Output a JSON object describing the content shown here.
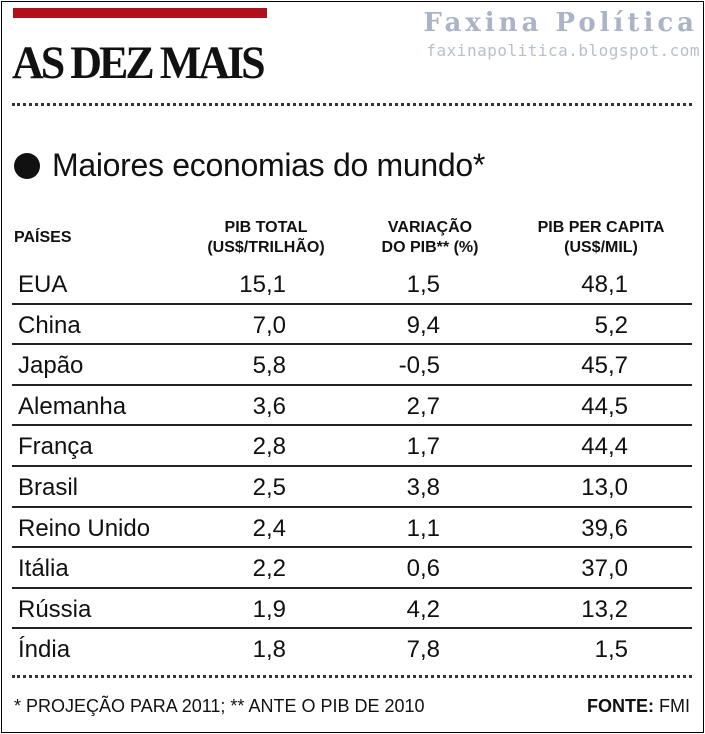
{
  "header": {
    "title": "AS DEZ MAIS",
    "watermark_title": "Faxina Política",
    "watermark_url": "faxinapolitica.blogspot.com",
    "accent_color": "#b01019"
  },
  "chart_data": {
    "type": "table",
    "title": "Maiores economias do mundo*",
    "columns": {
      "country": "PAÍSES",
      "gdp_line1": "PIB TOTAL",
      "gdp_line2": "(US$/TRILHÃO)",
      "growth_line1": "VARIAÇÃO",
      "growth_line2": "DO PIB** (%)",
      "percap_line1": "PIB PER CAPITA",
      "percap_line2": "(US$/MIL)"
    },
    "rows": [
      {
        "country": "EUA",
        "gdp": "15,1",
        "growth": "1,5",
        "per_capita": "48,1"
      },
      {
        "country": "China",
        "gdp": "7,0",
        "growth": "9,4",
        "per_capita": "5,2"
      },
      {
        "country": "Japão",
        "gdp": "5,8",
        "growth": "-0,5",
        "per_capita": "45,7"
      },
      {
        "country": "Alemanha",
        "gdp": "3,6",
        "growth": "2,7",
        "per_capita": "44,5"
      },
      {
        "country": "França",
        "gdp": "2,8",
        "growth": "1,7",
        "per_capita": "44,4"
      },
      {
        "country": "Brasil",
        "gdp": "2,5",
        "growth": "3,8",
        "per_capita": "13,0"
      },
      {
        "country": "Reino Unido",
        "gdp": "2,4",
        "growth": "1,1",
        "per_capita": "39,6"
      },
      {
        "country": "Itália",
        "gdp": "2,2",
        "growth": "0,6",
        "per_capita": "37,0"
      },
      {
        "country": "Rússia",
        "gdp": "1,9",
        "growth": "4,2",
        "per_capita": "13,2"
      },
      {
        "country": "Índia",
        "gdp": "1,8",
        "growth": "7,8",
        "per_capita": "1,5"
      }
    ],
    "footnote": "* PROJEÇÃO PARA 2011; ** ANTE O PIB DE 2010",
    "source_label": "FONTE:",
    "source_value": "FMI"
  }
}
